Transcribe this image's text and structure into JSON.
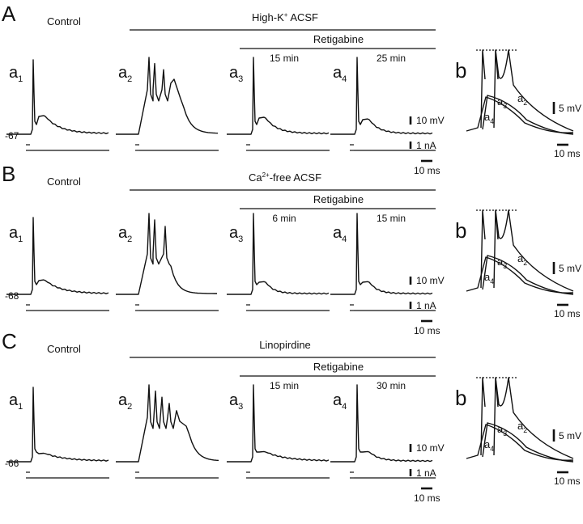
{
  "rows": [
    {
      "panel": "A",
      "control_label": "Control",
      "condition_prefix": "High-K",
      "condition_sup": "+",
      "condition_suffix": " ACSF",
      "retigabine_label": "Retigabine",
      "time1": "15 min",
      "time2": "25 min",
      "resting": "-67",
      "sub_labels": [
        "a",
        "a",
        "a",
        "a"
      ],
      "sub_indices": [
        "1",
        "2",
        "3",
        "4"
      ],
      "b_label": "b",
      "b_trace_labels": [
        "a",
        "a",
        "a"
      ],
      "b_trace_indices": [
        "2",
        "3",
        "4"
      ],
      "scale_v": "10 mV",
      "scale_i": "1 nA",
      "scale_t": "10 ms",
      "b_scale_v": "5 mV",
      "b_scale_t": "10 ms"
    },
    {
      "panel": "B",
      "control_label": "Control",
      "condition_prefix": "Ca",
      "condition_sup": "2+",
      "condition_suffix": "-free ACSF",
      "retigabine_label": "Retigabine",
      "time1": "6 min",
      "time2": "15 min",
      "resting": "-68",
      "sub_labels": [
        "a",
        "a",
        "a",
        "a"
      ],
      "sub_indices": [
        "1",
        "2",
        "3",
        "4"
      ],
      "b_label": "b",
      "b_trace_labels": [
        "a",
        "a",
        "a"
      ],
      "b_trace_indices": [
        "2",
        "3",
        "4"
      ],
      "scale_v": "10 mV",
      "scale_i": "1 nA",
      "scale_t": "10 ms",
      "b_scale_v": "5 mV",
      "b_scale_t": "10 ms"
    },
    {
      "panel": "C",
      "control_label": "Control",
      "condition_prefix": "Linopirdine",
      "condition_sup": "",
      "condition_suffix": "",
      "retigabine_label": "Retigabine",
      "time1": "15 min",
      "time2": "30 min",
      "resting": "-66",
      "sub_labels": [
        "a",
        "a",
        "a",
        "a"
      ],
      "sub_indices": [
        "1",
        "2",
        "3",
        "4"
      ],
      "b_label": "b",
      "b_trace_labels": [
        "a",
        "a",
        "a"
      ],
      "b_trace_indices": [
        "2",
        "3",
        "4"
      ],
      "scale_v": "10 mV",
      "scale_i": "1 nA",
      "scale_t": "10 ms",
      "b_scale_v": "5 mV",
      "b_scale_t": "10 ms"
    }
  ]
}
